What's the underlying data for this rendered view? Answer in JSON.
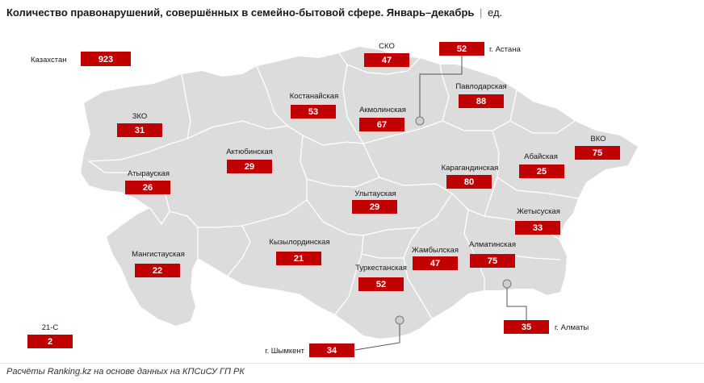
{
  "title": {
    "main": "Количество правонарушений, совершённых в семейно-бытовой сфере. Январь–декабрь",
    "separator": "|",
    "unit": "ед."
  },
  "footer": "Расчёты Ranking.kz на основе данных на КПСиСУ ГП РК",
  "colors": {
    "land": "#dcdcdc",
    "value_box": "#c00000",
    "value_text": "#ffffff"
  },
  "summary": {
    "label": "Казахстан",
    "value": "923"
  },
  "regions": [
    {
      "id": "zko",
      "label": "ЗКО",
      "value": "31"
    },
    {
      "id": "atyrau",
      "label": "Атырауская",
      "value": "26"
    },
    {
      "id": "mangystau",
      "label": "Мангистауская",
      "value": "22"
    },
    {
      "id": "aktobe",
      "label": "Актюбинская",
      "value": "29"
    },
    {
      "id": "kostanay",
      "label": "Костанайская",
      "value": "53"
    },
    {
      "id": "sko",
      "label": "СКО",
      "value": "47"
    },
    {
      "id": "akmola",
      "label": "Акмолинская",
      "value": "67"
    },
    {
      "id": "pavlodar",
      "label": "Павлодарская",
      "value": "88"
    },
    {
      "id": "vko",
      "label": "ВКО",
      "value": "75"
    },
    {
      "id": "abai",
      "label": "Абайская",
      "value": "25"
    },
    {
      "id": "karaganda",
      "label": "Карагандинская",
      "value": "80"
    },
    {
      "id": "ulytau",
      "label": "Улытауская",
      "value": "29"
    },
    {
      "id": "zhetysu",
      "label": "Жетысуская",
      "value": "33"
    },
    {
      "id": "kyzylorda",
      "label": "Кызылординская",
      "value": "21"
    },
    {
      "id": "zhambyl",
      "label": "Жамбылская",
      "value": "47"
    },
    {
      "id": "almaty_reg",
      "label": "Алматинская",
      "value": "75"
    },
    {
      "id": "turkestan",
      "label": "Туркестанская",
      "value": "52"
    },
    {
      "id": "c21",
      "label": "21-С",
      "value": "2"
    }
  ],
  "cities": [
    {
      "id": "astana",
      "label": "г. Астана",
      "value": "52"
    },
    {
      "id": "almaty",
      "label": "г. Алматы",
      "value": "35"
    },
    {
      "id": "shymkent",
      "label": "г. Шымкент",
      "value": "34"
    }
  ]
}
